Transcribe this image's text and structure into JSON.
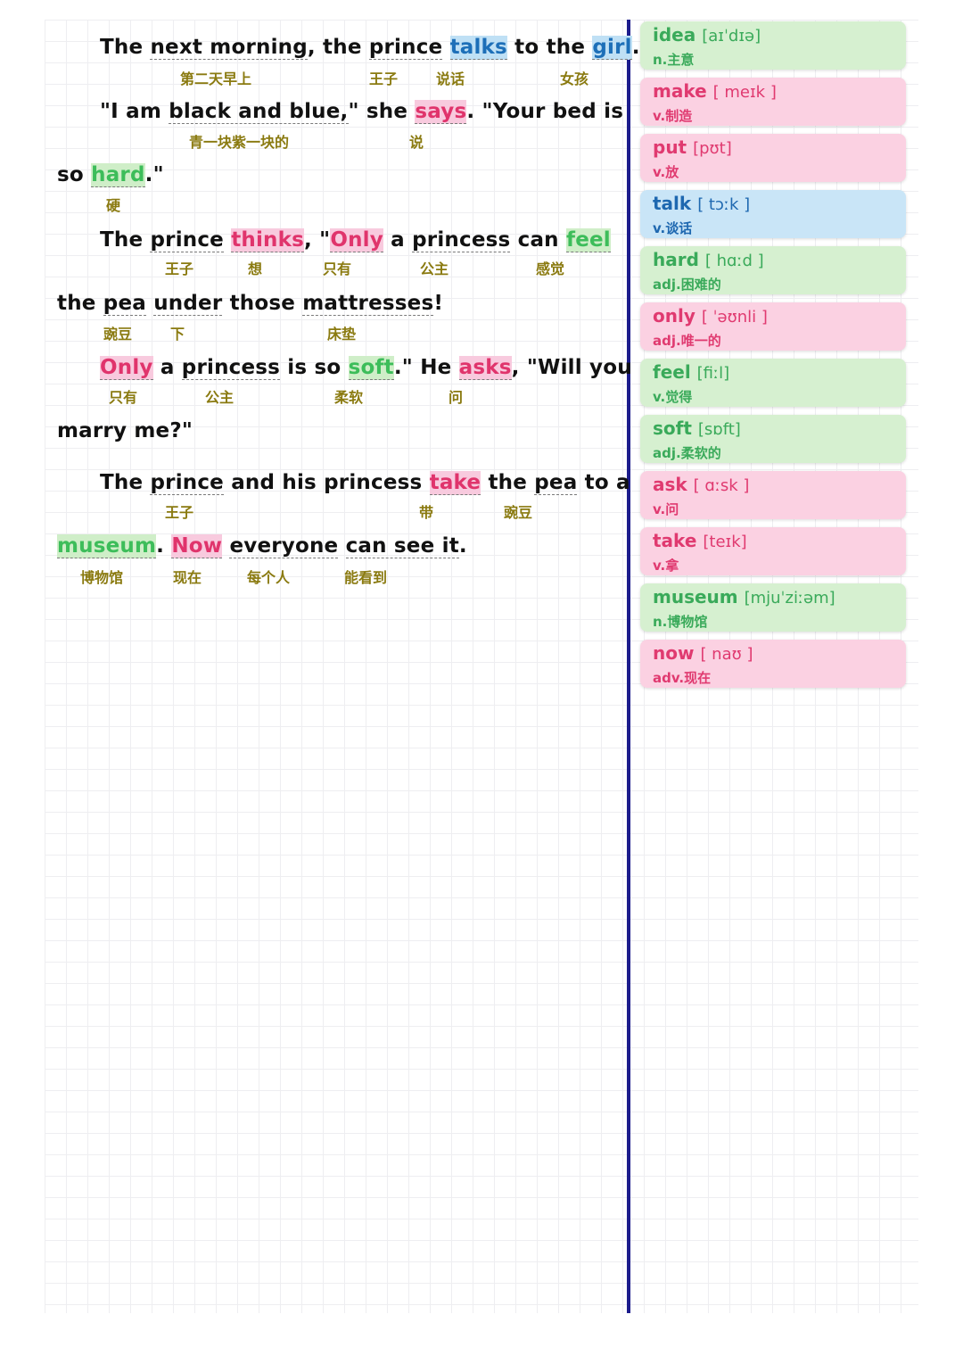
{
  "passage": {
    "l1": {
      "a": "The",
      "b": "next morning",
      "c": ", the",
      "d": "prince",
      "e": "talks",
      "f": "to the",
      "g": "girl",
      "h": "."
    },
    "l1zh": {
      "a": "第二天早上",
      "b": "王子",
      "c": "说话",
      "d": "女孩"
    },
    "l2": {
      "a": "\"I am",
      "b": "black and blue,",
      "c": "\" she",
      "d": "says",
      "e": ". \"Your bed is"
    },
    "l2zh": {
      "a": "青一块紫一块的",
      "b": "说"
    },
    "l3": {
      "a": "so",
      "b": "hard",
      "c": ".\""
    },
    "l3zh": {
      "a": "硬"
    },
    "l4": {
      "a": "The",
      "b": "prince",
      "c": "thinks",
      "d": ", \"",
      "e": "Only",
      "f": "a",
      "g": "princess",
      "h": "can",
      "i": "feel"
    },
    "l4zh": {
      "a": "王子",
      "b": "想",
      "c": "只有",
      "d": "公主",
      "e": "感觉"
    },
    "l5": {
      "a": "the",
      "b": "pea",
      "c": "under",
      "d": "those",
      "e": "mattresses",
      "f": "!"
    },
    "l5zh": {
      "a": "豌豆",
      "b": "下",
      "c": "床垫"
    },
    "l6": {
      "a": "Only",
      "b": "a",
      "c": "princess",
      "d": "is so",
      "e": "soft",
      "f": ".\" He",
      "g": "asks",
      "h": ", \"Will you"
    },
    "l6zh": {
      "a": "只有",
      "b": "公主",
      "c": "柔软",
      "d": "问"
    },
    "l7": {
      "a": "marry me?\""
    },
    "l8": {
      "a": "The",
      "b": "prince",
      "c": "and his princess",
      "d": "take",
      "e": "the",
      "f": "pea",
      "g": "to a"
    },
    "l8zh": {
      "a": "王子",
      "b": "带",
      "c": "豌豆"
    },
    "l9": {
      "a": "museum",
      "b": ".",
      "c": "Now",
      "d": "everyone",
      "e": "can see it",
      "f": "."
    },
    "l9zh": {
      "a": "博物馆",
      "b": "现在",
      "c": "每个人",
      "d": "能看到"
    }
  },
  "vocab": [
    {
      "word": "idea",
      "pron": "[aɪˈdɪə]",
      "meaning": "n.主意",
      "color": "green"
    },
    {
      "word": "make",
      "pron": "[ meɪk ]",
      "meaning": "v.制造",
      "color": "pink"
    },
    {
      "word": "put",
      "pron": "[pʊt]",
      "meaning": "v.放",
      "color": "pink"
    },
    {
      "word": "talk",
      "pron": "[ tɔːk ]",
      "meaning": "v.谈话",
      "color": "blue"
    },
    {
      "word": "hard",
      "pron": "[ hɑːd ]",
      "meaning": "adj.困难的",
      "color": "green"
    },
    {
      "word": "only",
      "pron": "[ ˈəʊnli ]",
      "meaning": "adj.唯一的",
      "color": "pink"
    },
    {
      "word": "feel",
      "pron": "[fiːl]",
      "meaning": "v.觉得",
      "color": "green"
    },
    {
      "word": "soft",
      "pron": "[sɒft]",
      "meaning": "adj.柔软的",
      "color": "green"
    },
    {
      "word": "ask",
      "pron": "[ ɑːsk ]",
      "meaning": "v.问",
      "color": "pink"
    },
    {
      "word": "take",
      "pron": "[teɪk]",
      "meaning": "v.拿",
      "color": "pink"
    },
    {
      "word": "museum",
      "pron": "[mjuˈziːəm]",
      "meaning": "n.博物馆",
      "color": "green"
    },
    {
      "word": "now",
      "pron": "[ naʊ ]",
      "meaning": "adv.现在",
      "color": "pink"
    }
  ]
}
